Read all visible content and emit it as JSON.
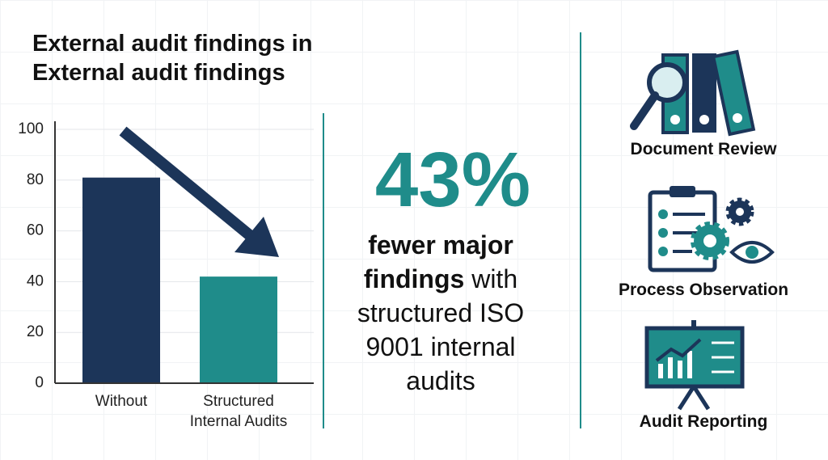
{
  "chart_data": {
    "type": "bar",
    "title": [
      "External audit findings in",
      "External audit findings"
    ],
    "categories": [
      "Without",
      "Structured Internal Audits"
    ],
    "values": [
      81,
      42
    ],
    "colors": [
      "#1c3559",
      "#1f8c8a"
    ],
    "ylim": [
      0,
      100
    ],
    "yticks": [
      0,
      20,
      40,
      60,
      80,
      100
    ],
    "grid": true
  },
  "stat": {
    "value": "43%",
    "highlight": "fewer major findings",
    "rest": "with structured ISO 9001 internal audits"
  },
  "methods": [
    "Document Review",
    "Process Observation",
    "Audit Reporting"
  ]
}
